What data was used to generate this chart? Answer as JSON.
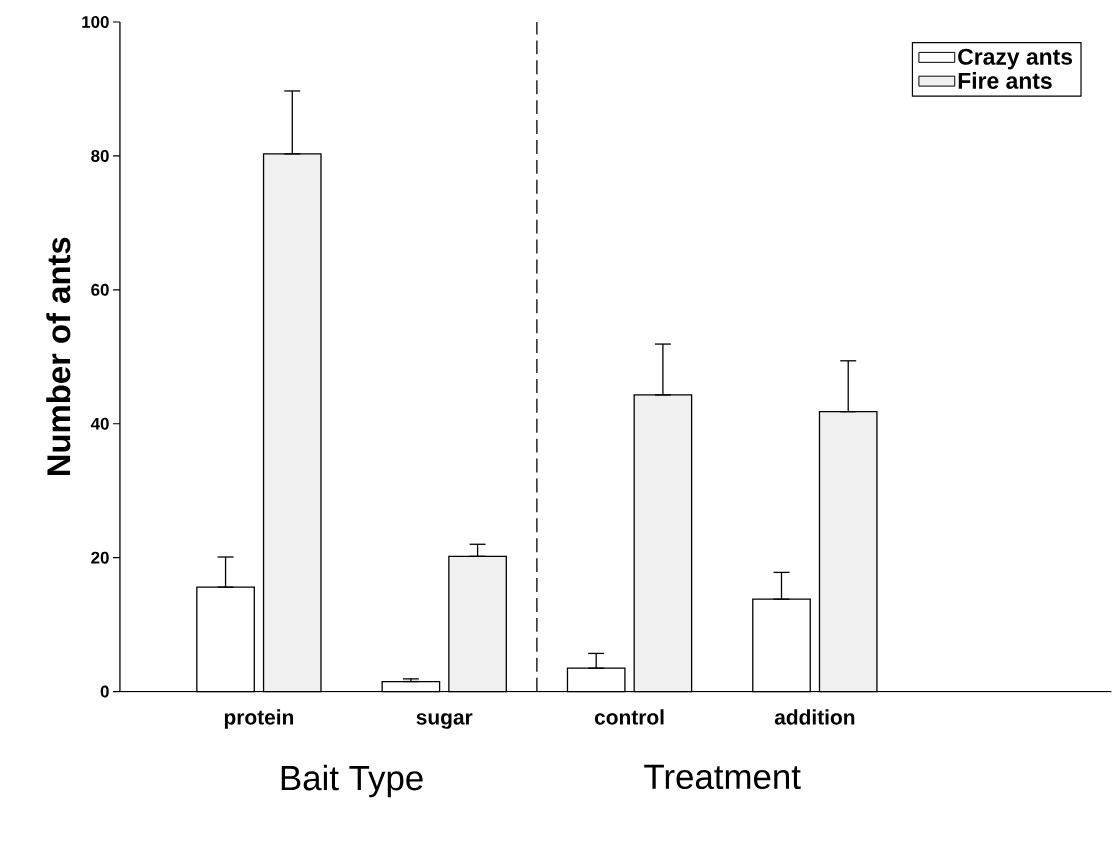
{
  "chart_data": {
    "type": "bar",
    "xlabel": "Bait Type",
    "ylabel": "Number of ants",
    "categories": [
      "protein",
      "sugar",
      "control",
      "addition"
    ],
    "series": [
      {
        "name": "Crazy ants",
        "color": "#ffffff",
        "values": [
          15.6,
          1.5,
          3.5,
          13.8
        ],
        "errors": [
          [
            15.6,
            20.1
          ],
          [
            1.5,
            1.9
          ],
          [
            3.5,
            5.7
          ],
          [
            13.8,
            17.8
          ]
        ]
      },
      {
        "name": "Fire ants",
        "color": "#f0f0f0",
        "values": [
          80.3,
          20.2,
          44.3,
          41.8
        ],
        "errors": [
          [
            80.3,
            89.7
          ],
          [
            20.2,
            22.0
          ],
          [
            44.3,
            51.9
          ],
          [
            41.8,
            49.4
          ]
        ]
      }
    ],
    "ylim": [
      0,
      100
    ],
    "yticks": [
      0,
      20,
      40,
      60,
      80,
      100
    ],
    "annotations": [
      "Treatment"
    ],
    "legend": "top right",
    "grid": false
  }
}
